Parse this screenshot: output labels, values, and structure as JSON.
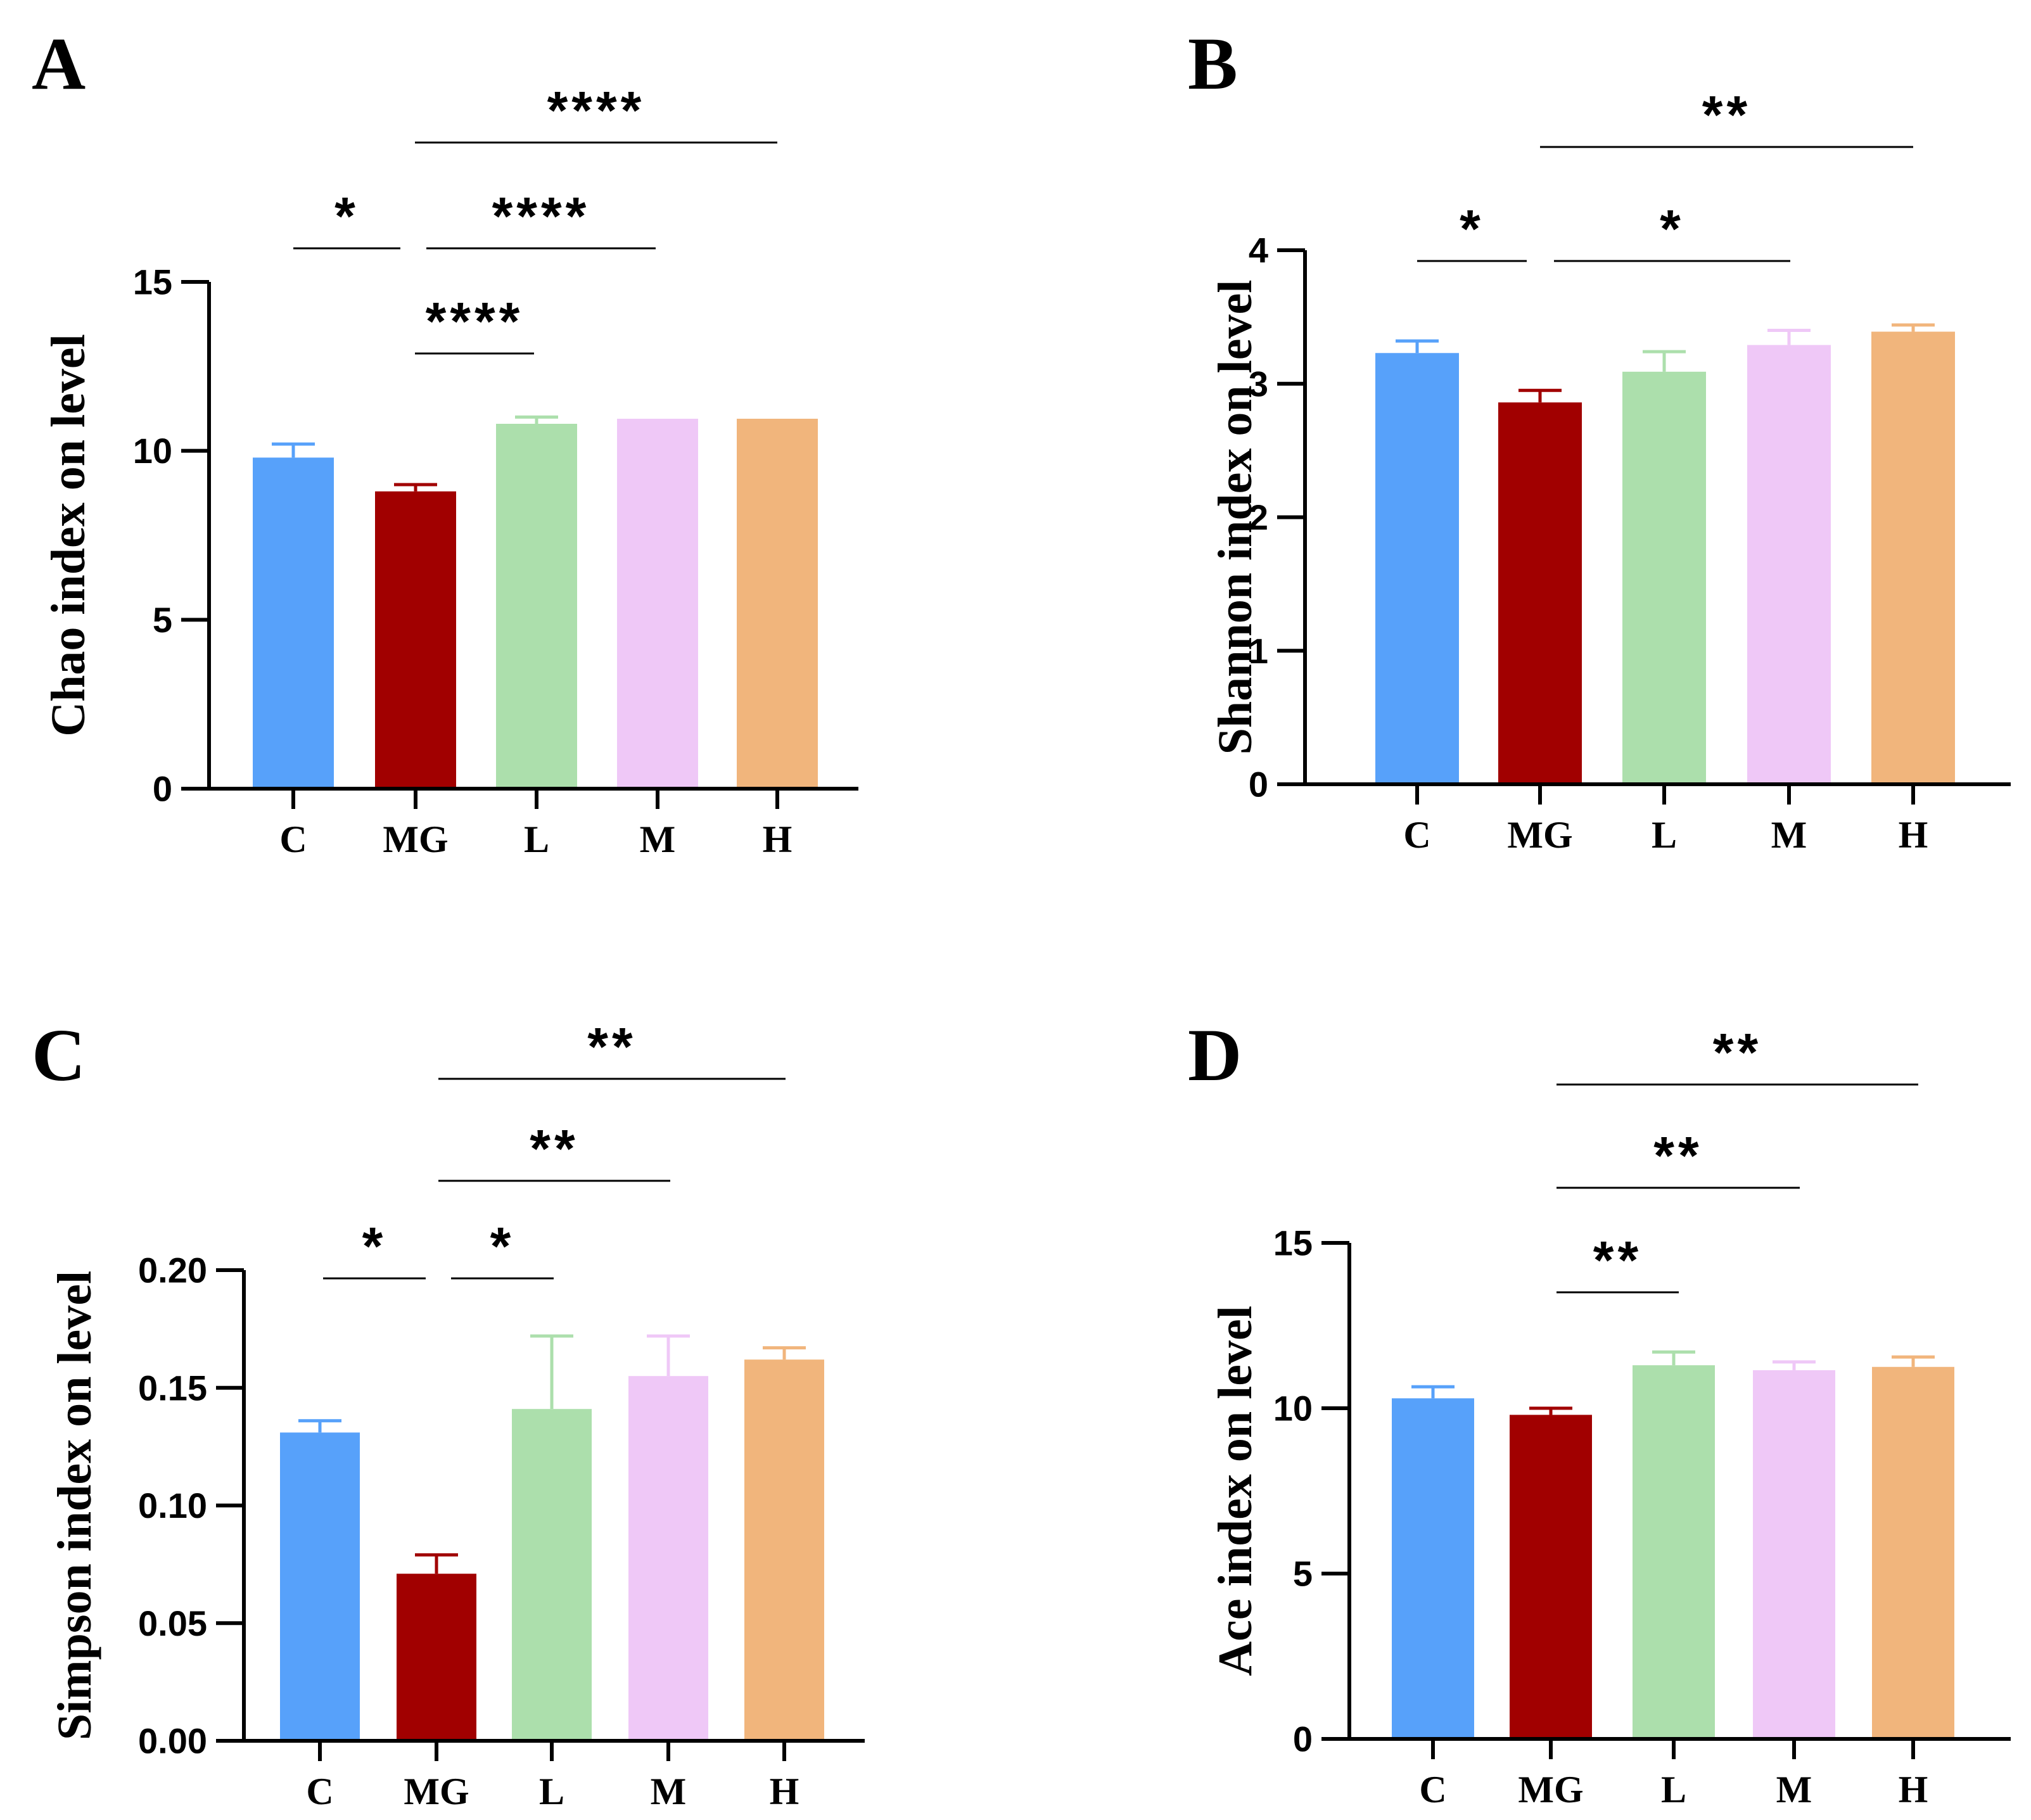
{
  "chart_data": [
    {
      "type": "bar",
      "panel": "A",
      "ylabel": "Chao index on  level",
      "categories": [
        "C",
        "MG",
        "L",
        "M",
        "H"
      ],
      "values": [
        9.8,
        8.8,
        10.8,
        10.95,
        10.95
      ],
      "errors": [
        0.4,
        0.2,
        0.2,
        0.0,
        0.0
      ],
      "ylim": [
        0,
        15
      ],
      "yticks": [
        0,
        5,
        10,
        15
      ],
      "ytick_labels": [
        "0",
        "5",
        "10",
        "15"
      ],
      "significance": [
        {
          "from": 0,
          "to": 1,
          "label": "*"
        },
        {
          "from": 1,
          "to": 2,
          "label": "****"
        },
        {
          "from": 1,
          "to": 3,
          "label": "****"
        },
        {
          "from": 1,
          "to": 4,
          "label": "****"
        }
      ]
    },
    {
      "type": "bar",
      "panel": "B",
      "ylabel": "Shannon index on  level",
      "categories": [
        "C",
        "MG",
        "L",
        "M",
        "H"
      ],
      "values": [
        3.23,
        2.86,
        3.09,
        3.29,
        3.39
      ],
      "errors": [
        0.09,
        0.09,
        0.15,
        0.11,
        0.05
      ],
      "ylim": [
        0,
        4
      ],
      "yticks": [
        0,
        1,
        2,
        3,
        4
      ],
      "ytick_labels": [
        "0",
        "1",
        "2",
        "3",
        "4"
      ],
      "significance": [
        {
          "from": 0,
          "to": 1,
          "label": "*"
        },
        {
          "from": 1,
          "to": 3,
          "label": "*"
        },
        {
          "from": 1,
          "to": 4,
          "label": "**"
        }
      ]
    },
    {
      "type": "bar",
      "panel": "C",
      "ylabel": "Simpson index on  level",
      "categories": [
        "C",
        "MG",
        "L",
        "M",
        "H"
      ],
      "values": [
        0.131,
        0.071,
        0.141,
        0.155,
        0.162
      ],
      "errors": [
        0.005,
        0.008,
        0.031,
        0.017,
        0.005
      ],
      "ylim": [
        0,
        0.2
      ],
      "yticks": [
        0,
        0.05,
        0.1,
        0.15,
        0.2
      ],
      "ytick_labels": [
        "0.00",
        "0.05",
        "0.10",
        "0.15",
        "0.20"
      ],
      "significance": [
        {
          "from": 0,
          "to": 1,
          "label": "*"
        },
        {
          "from": 1,
          "to": 2,
          "label": "*"
        },
        {
          "from": 1,
          "to": 3,
          "label": "**"
        },
        {
          "from": 1,
          "to": 4,
          "label": "**"
        }
      ]
    },
    {
      "type": "bar",
      "panel": "D",
      "ylabel": "Ace index on  level",
      "categories": [
        "C",
        "MG",
        "L",
        "M",
        "H"
      ],
      "values": [
        10.3,
        9.8,
        11.3,
        11.15,
        11.25
      ],
      "errors": [
        0.35,
        0.2,
        0.4,
        0.25,
        0.3
      ],
      "ylim": [
        0,
        15
      ],
      "yticks": [
        0,
        5,
        10,
        15
      ],
      "ytick_labels": [
        "0",
        "5",
        "10",
        "15"
      ],
      "significance": [
        {
          "from": 1,
          "to": 2,
          "label": "**"
        },
        {
          "from": 1,
          "to": 3,
          "label": "**"
        },
        {
          "from": 1,
          "to": 4,
          "label": "**"
        }
      ]
    }
  ],
  "colors": {
    "bars": [
      "#57a1fa",
      "#a10000",
      "#acdfac",
      "#efc8f7",
      "#f1b57c"
    ]
  }
}
